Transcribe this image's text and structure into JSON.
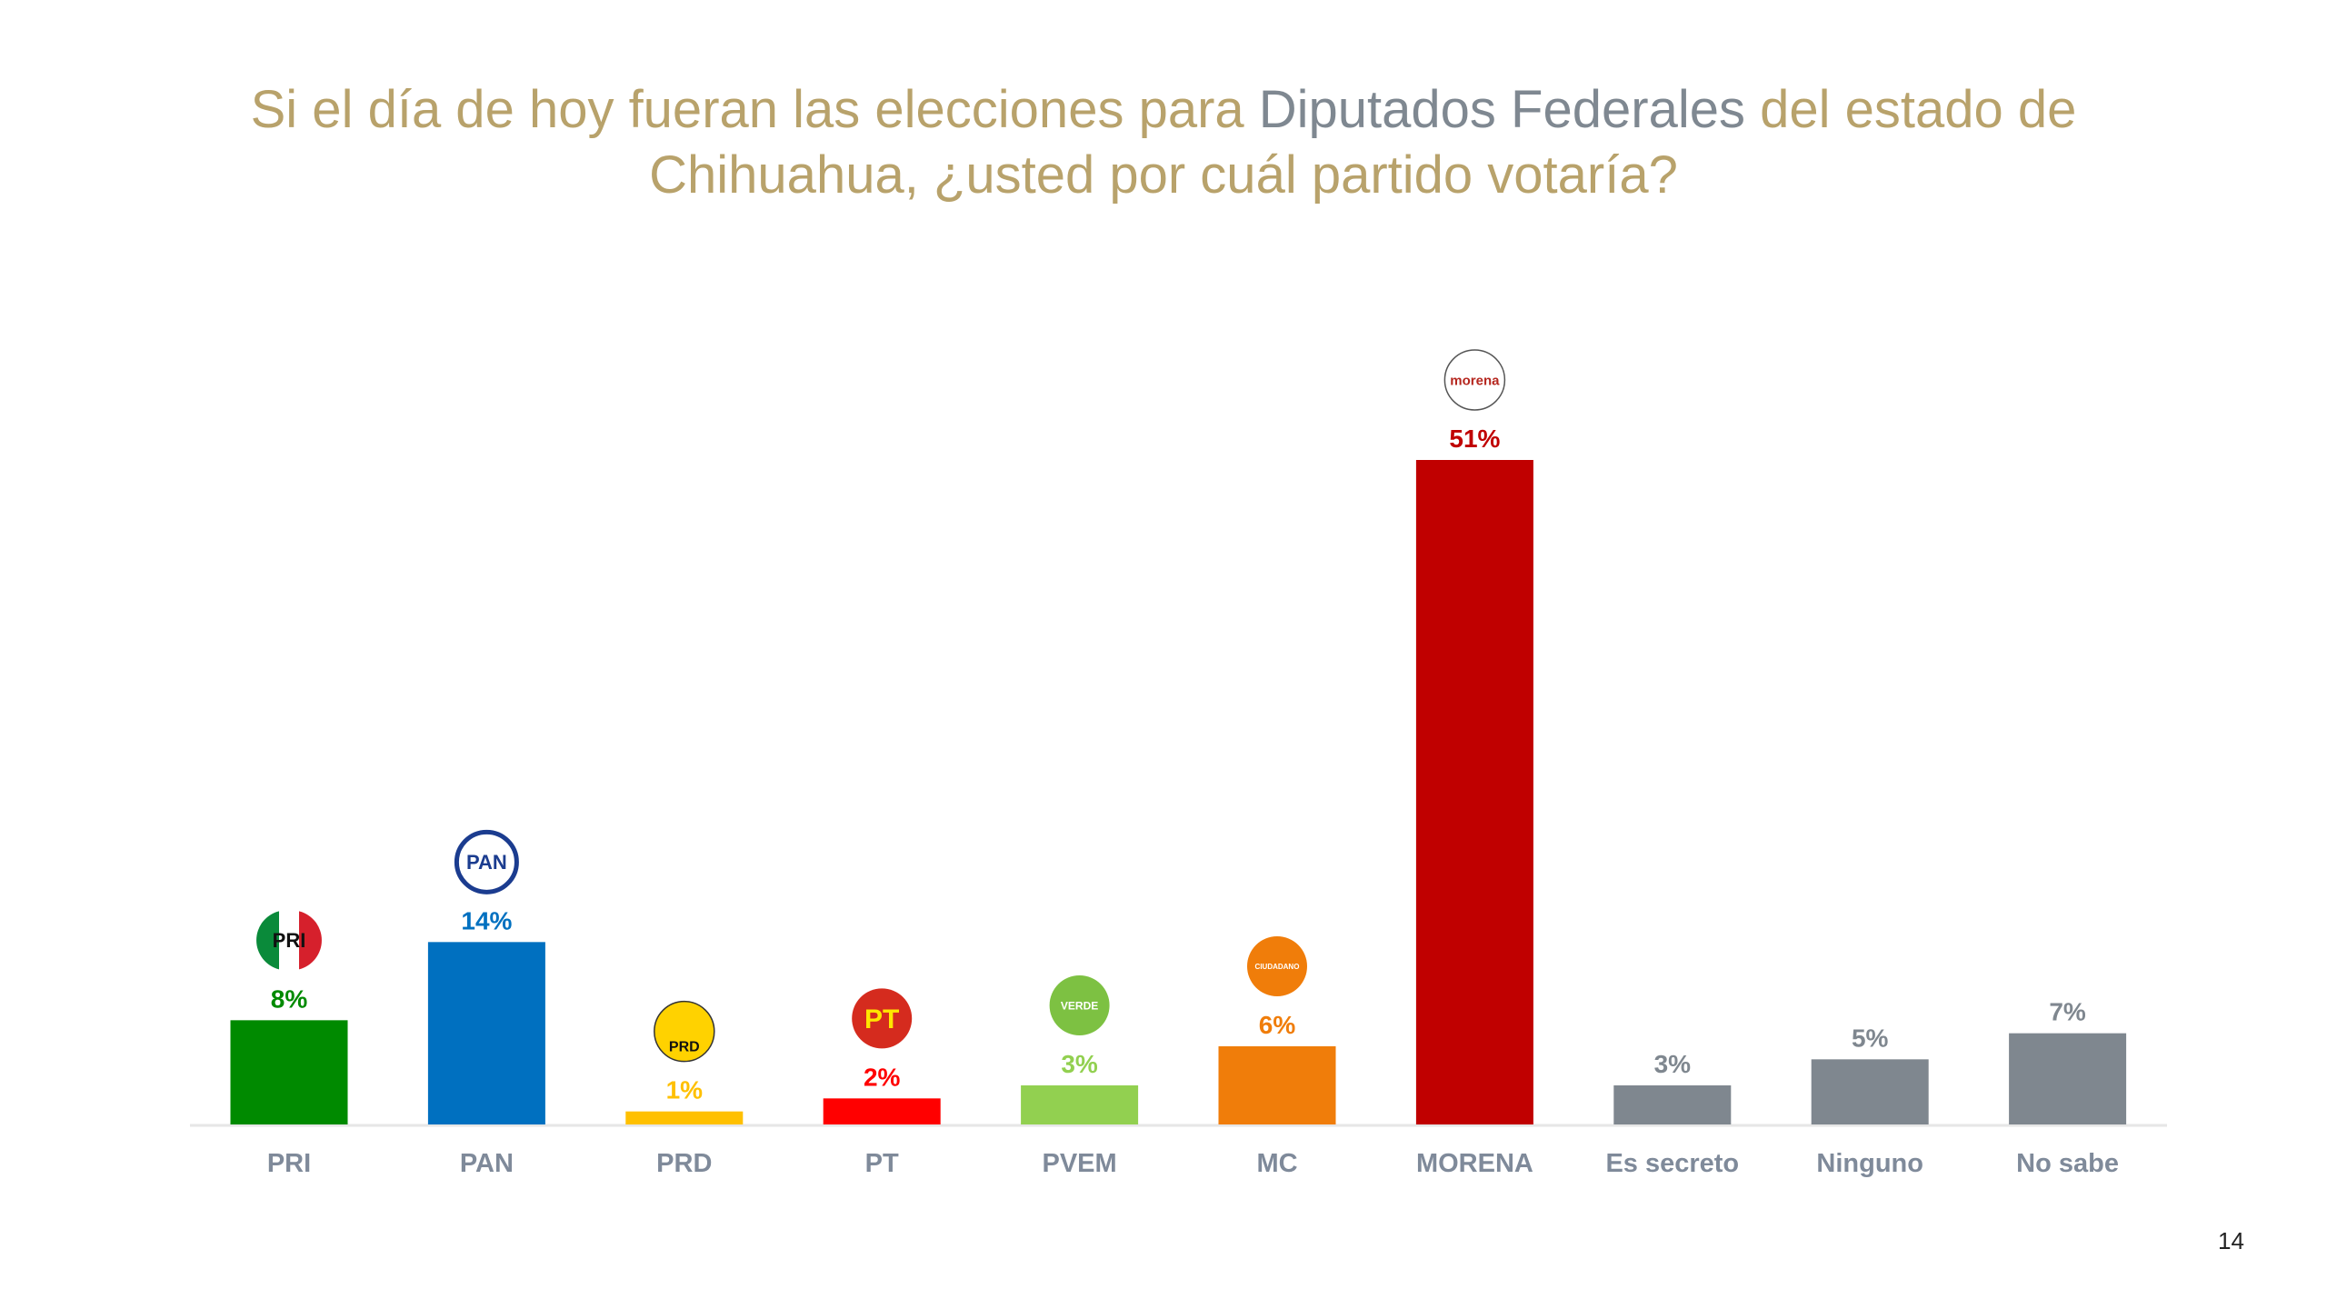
{
  "title": {
    "part1": "Si el día de hoy fueran las elecciones para ",
    "highlight": "Diputados Federales",
    "part2": " del estado de Chihuahua, ¿usted por cuál partido votaría?"
  },
  "page_number": "14",
  "chart_data": {
    "type": "bar",
    "categories": [
      "PRI",
      "PAN",
      "PRD",
      "PT",
      "PVEM",
      "MC",
      "MORENA",
      "Es secreto",
      "Ninguno",
      "No sabe"
    ],
    "values": [
      8,
      14,
      1,
      2,
      3,
      6,
      51,
      3,
      5,
      7
    ],
    "value_labels": [
      "8%",
      "14%",
      "1%",
      "2%",
      "3%",
      "6%",
      "51%",
      "3%",
      "5%",
      "7%"
    ],
    "colors": [
      "#008A00",
      "#0070C0",
      "#FFC000",
      "#FF0000",
      "#92D050",
      "#F07D0A",
      "#C00000",
      "#7F878F",
      "#7F878F",
      "#7F878F"
    ],
    "logos": [
      {
        "text": "PRI",
        "icon": "pri-logo"
      },
      {
        "text": "PAN",
        "icon": "pan-logo"
      },
      {
        "text": "PRD",
        "icon": "prd-logo"
      },
      {
        "text": "PT",
        "icon": "pt-logo"
      },
      {
        "text": "VERDE",
        "icon": "pvem-logo"
      },
      {
        "text": "CIUDADANO",
        "icon": "mc-logo"
      },
      {
        "text": "morena",
        "icon": "morena-logo"
      },
      null,
      null,
      null
    ],
    "category_label_color": "#7F8A9A",
    "ylim": [
      0,
      55
    ],
    "grid": false,
    "legend": "none"
  }
}
